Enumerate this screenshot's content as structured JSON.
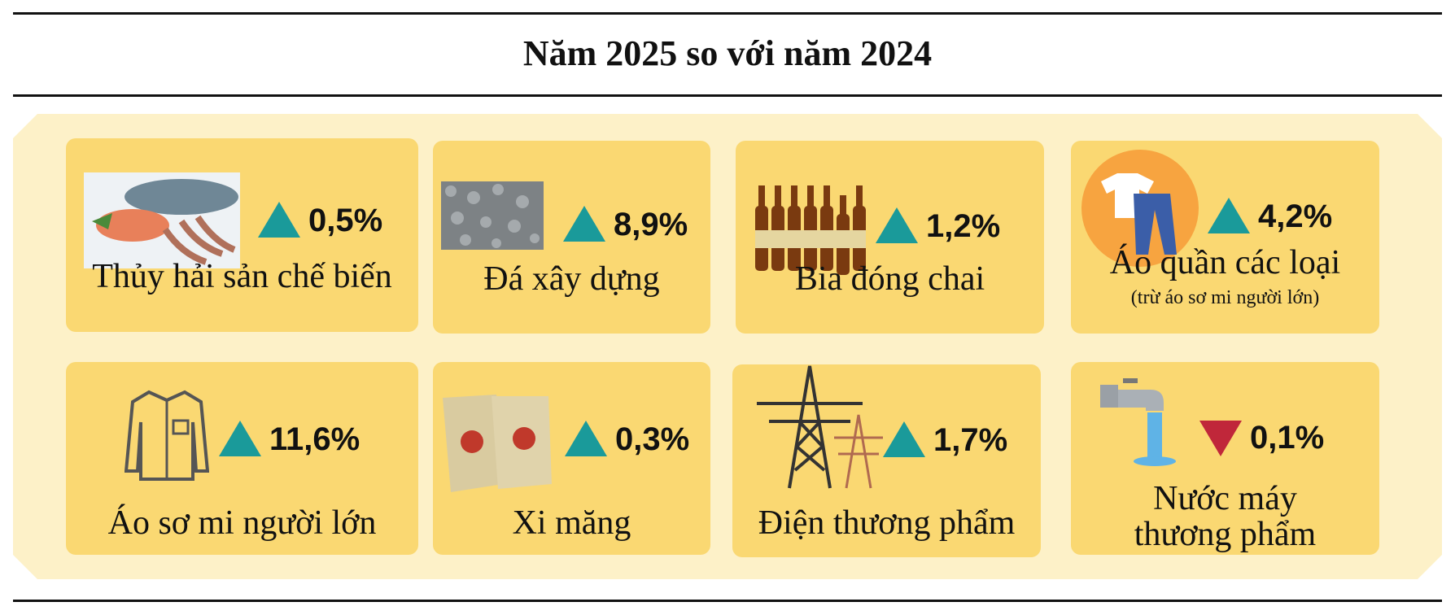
{
  "title": "Năm 2025 so với năm 2024",
  "items": [
    {
      "label": "Thủy hải sản chế biến",
      "change": "0,5%",
      "direction": "up"
    },
    {
      "label": "Đá xây dựng",
      "change": "8,9%",
      "direction": "up"
    },
    {
      "label": "Bia đóng chai",
      "change": "1,2%",
      "direction": "up"
    },
    {
      "label": "Áo quần các loại",
      "sublabel": "(trừ áo sơ mi người lớn)",
      "change": "4,2%",
      "direction": "up"
    },
    {
      "label": "Áo sơ mi người lớn",
      "change": "11,6%",
      "direction": "up"
    },
    {
      "label": "Xi măng",
      "change": "0,3%",
      "direction": "up"
    },
    {
      "label": "Điện thương phẩm",
      "change": "1,7%",
      "direction": "up"
    },
    {
      "label": "Nước máy thương phẩm",
      "change": "0,1%",
      "direction": "down"
    }
  ],
  "colors": {
    "up": "#1a9a9a",
    "down": "#c0273a"
  }
}
